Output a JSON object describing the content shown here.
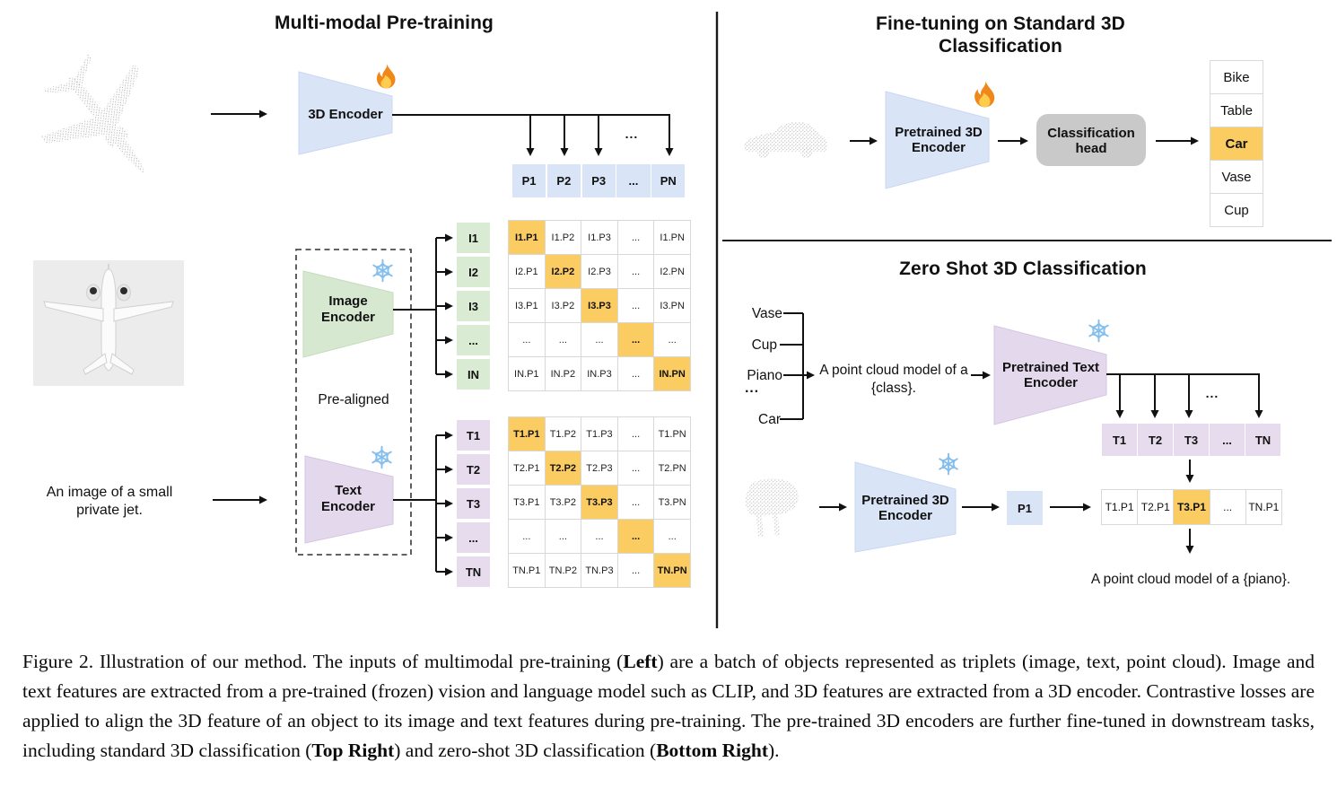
{
  "shared": {
    "dots": "..."
  },
  "pretraining": {
    "title": "Multi-modal Pre-training",
    "encoder_3d_label": "3D Encoder",
    "image_encoder_label": "Image Encoder",
    "text_encoder_label": "Text Encoder",
    "pre_aligned_label": "Pre-aligned",
    "text_input": "An image of a small private jet.",
    "p_row": [
      "P1",
      "P2",
      "P3",
      "...",
      "PN"
    ],
    "image_features": [
      "I1",
      "I2",
      "I3",
      "...",
      "IN"
    ],
    "text_features": [
      "T1",
      "T2",
      "T3",
      "...",
      "TN"
    ],
    "image_matrix": [
      [
        "I1.P1",
        "I1.P2",
        "I1.P3",
        "...",
        "I1.PN"
      ],
      [
        "I2.P1",
        "I2.P2",
        "I2.P3",
        "...",
        "I2.PN"
      ],
      [
        "I3.P1",
        "I3.P2",
        "I3.P3",
        "...",
        "I3.PN"
      ],
      [
        "...",
        "...",
        "...",
        "...",
        "..."
      ],
      [
        "IN.P1",
        "IN.P2",
        "IN.P3",
        "...",
        "IN.PN"
      ]
    ],
    "text_matrix": [
      [
        "T1.P1",
        "T1.P2",
        "T1.P3",
        "...",
        "T1.PN"
      ],
      [
        "T2.P1",
        "T2.P2",
        "T2.P3",
        "...",
        "T2.PN"
      ],
      [
        "T3.P1",
        "T3.P2",
        "T3.P3",
        "...",
        "T3.PN"
      ],
      [
        "...",
        "...",
        "...",
        "...",
        "..."
      ],
      [
        "TN.P1",
        "TN.P2",
        "TN.P3",
        "...",
        "TN.PN"
      ]
    ]
  },
  "finetune": {
    "title": "Fine-tuning on Standard 3D Classification",
    "encoder_label": "Pretrained 3D Encoder",
    "head_label": "Classification head",
    "classes": [
      "Bike",
      "Table",
      "Car",
      "Vase",
      "Cup"
    ],
    "predicted_class": "Car"
  },
  "zeroshot": {
    "title": "Zero Shot 3D Classification",
    "class_list": [
      "Vase",
      "Cup",
      "Piano",
      "...",
      "Car"
    ],
    "prompt": "A point cloud model of a {class}.",
    "text_encoder_label": "Pretrained Text Encoder",
    "encoder_label": "Pretrained 3D Encoder",
    "p_feature": "P1",
    "t_row": [
      "T1",
      "T2",
      "T3",
      "...",
      "TN"
    ],
    "similarity_row": [
      "T1.P1",
      "T2.P1",
      "T3.P1",
      "...",
      "TN.P1"
    ],
    "matched_cell": "T3.P1",
    "result_text": "A point cloud model of a {piano}."
  },
  "caption": {
    "segments": [
      {
        "t": "Figure 2. Illustration of our method. The inputs of multimodal pre-training ("
      },
      {
        "t": "Left",
        "b": true
      },
      {
        "t": ") are a batch of objects represented as triplets (image, text, point cloud). Image and text features are extracted from a pre-trained (frozen) vision and language model such as CLIP, and 3D features are extracted from a 3D encoder. Contrastive losses are applied to align the 3D feature of an object to its image and text features during pre-training. The pre-trained 3D encoders are further fine-tuned in downstream tasks, including standard 3D classification ("
      },
      {
        "t": "Top Right",
        "b": true
      },
      {
        "t": ") and zero-shot 3D classification ("
      },
      {
        "t": "Bottom Right",
        "b": true
      },
      {
        "t": ")."
      }
    ]
  },
  "colors": {
    "point_feature_blue": "#D9E4F7",
    "image_feature_green": "#DAEBD4",
    "text_feature_purple": "#E6DCEE",
    "highlight_orange": "#FBCC62",
    "classification_head_gray": "#C9C9C9",
    "flame_orange": "#F0871A",
    "snowflake_blue": "#84BEEC"
  },
  "icons": {
    "trainable": "fire-icon",
    "frozen": "snowflake-icon"
  }
}
